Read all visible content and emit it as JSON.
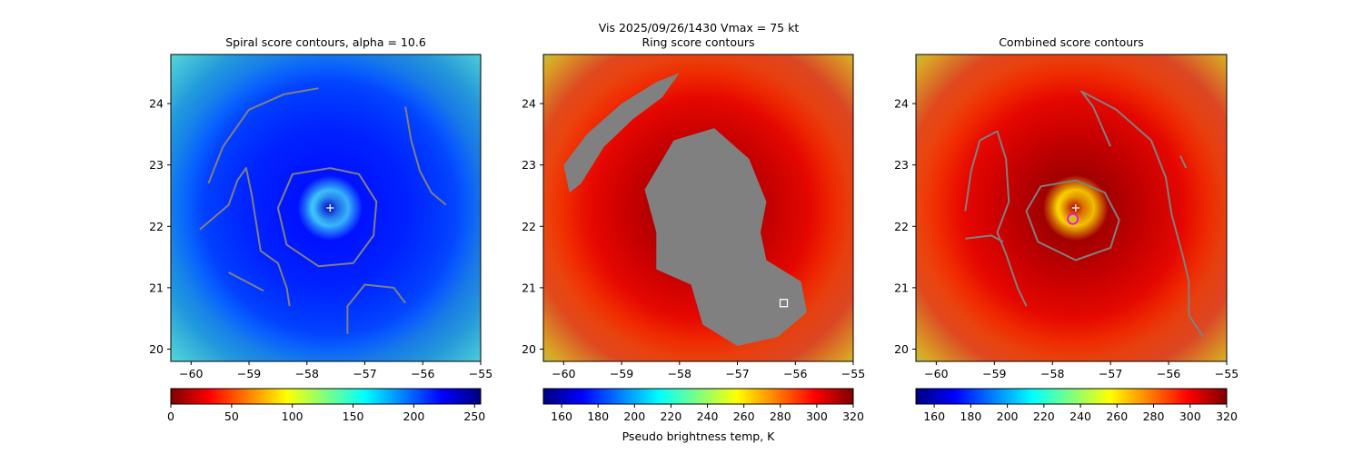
{
  "figure": {
    "suptitle_line1": "Vis  2025/09/26/1430    Vmax = 75 kt"
  },
  "colormap_stops": [
    "#7f0000",
    "#ff0000",
    "#ff8000",
    "#ffff00",
    "#7fff7f",
    "#00ffff",
    "#0080ff",
    "#0000ff",
    "#00007f"
  ],
  "colors": {
    "contour": "#808080",
    "center_marker": "#ffffff",
    "ring_fill": "#808080",
    "combined_marker_fill": "#c8c800",
    "combined_marker_edge": "#ff00ff"
  },
  "chart_data": [
    {
      "type": "heatmap",
      "title": "Spiral score contours, alpha = 10.6",
      "xlabel": "",
      "ylabel": "",
      "xlim": [
        -60.35,
        -55.0
      ],
      "ylim": [
        19.8,
        24.8
      ],
      "xticks": [
        -60,
        -59,
        -58,
        -57,
        -56,
        -55
      ],
      "yticks": [
        20,
        21,
        22,
        23,
        24
      ],
      "colorbar": {
        "min": 0,
        "max": 255,
        "ticks": [
          0,
          50,
          100,
          150,
          200,
          250
        ],
        "reversed": false,
        "label": ""
      },
      "storm_center": {
        "lon": -57.6,
        "lat": 22.3,
        "marker": "+"
      },
      "contours": [
        [
          [
            -59.7,
            22.7
          ],
          [
            -59.45,
            23.3
          ],
          [
            -59.0,
            23.9
          ],
          [
            -58.4,
            24.15
          ],
          [
            -57.8,
            24.25
          ]
        ],
        [
          [
            -59.85,
            21.95
          ],
          [
            -59.35,
            22.35
          ],
          [
            -59.2,
            22.75
          ],
          [
            -59.05,
            22.95
          ],
          [
            -58.95,
            22.5
          ],
          [
            -58.8,
            21.6
          ],
          [
            -58.5,
            21.4
          ],
          [
            -58.35,
            21.0
          ],
          [
            -58.3,
            20.7
          ]
        ],
        [
          [
            -57.6,
            22.95
          ],
          [
            -57.1,
            22.85
          ],
          [
            -56.8,
            22.4
          ],
          [
            -56.85,
            21.85
          ],
          [
            -57.2,
            21.4
          ],
          [
            -57.8,
            21.35
          ],
          [
            -58.35,
            21.7
          ],
          [
            -58.5,
            22.3
          ],
          [
            -58.25,
            22.85
          ],
          [
            -57.6,
            22.95
          ]
        ],
        [
          [
            -56.3,
            23.95
          ],
          [
            -56.2,
            23.4
          ],
          [
            -56.05,
            22.9
          ],
          [
            -55.85,
            22.55
          ],
          [
            -55.6,
            22.35
          ]
        ],
        [
          [
            -57.3,
            20.25
          ],
          [
            -57.3,
            20.7
          ],
          [
            -57.0,
            21.05
          ],
          [
            -56.5,
            21.0
          ],
          [
            -56.3,
            20.75
          ]
        ],
        [
          [
            -59.35,
            21.25
          ],
          [
            -59.05,
            21.1
          ],
          [
            -58.75,
            20.95
          ]
        ]
      ]
    },
    {
      "type": "heatmap",
      "title": "Ring score contours",
      "xlabel": "Pseudo brightness temp, K",
      "ylabel": "",
      "xlim": [
        -60.35,
        -55.0
      ],
      "ylim": [
        19.8,
        24.8
      ],
      "xticks": [
        -60,
        -59,
        -58,
        -57,
        -56,
        -55
      ],
      "yticks": [
        20,
        21,
        22,
        23,
        24
      ],
      "colorbar": {
        "min": 150,
        "max": 320,
        "ticks": [
          160,
          180,
          200,
          220,
          240,
          260,
          280,
          300,
          320
        ],
        "reversed": true,
        "label": "Pseudo brightness temp, K"
      },
      "filled_region": [
        [
          -60.0,
          23.0
        ],
        [
          -59.6,
          23.5
        ],
        [
          -59.0,
          24.0
        ],
        [
          -58.4,
          24.35
        ],
        [
          -58.0,
          24.5
        ],
        [
          -58.3,
          24.1
        ],
        [
          -58.8,
          23.75
        ],
        [
          -59.3,
          23.3
        ],
        [
          -59.7,
          22.7
        ],
        [
          -59.9,
          22.55
        ],
        [
          -60.0,
          23.0
        ]
      ],
      "filled_region_2": [
        [
          -58.4,
          21.9
        ],
        [
          -58.6,
          22.6
        ],
        [
          -58.1,
          23.4
        ],
        [
          -57.4,
          23.6
        ],
        [
          -56.8,
          23.1
        ],
        [
          -56.5,
          22.4
        ],
        [
          -56.6,
          21.9
        ],
        [
          -56.5,
          21.45
        ],
        [
          -55.9,
          21.1
        ],
        [
          -55.8,
          20.6
        ],
        [
          -56.3,
          20.2
        ],
        [
          -57.0,
          20.05
        ],
        [
          -57.6,
          20.4
        ],
        [
          -57.8,
          21.05
        ],
        [
          -58.4,
          21.3
        ],
        [
          -58.4,
          21.9
        ]
      ],
      "square_marker": {
        "lon": -56.2,
        "lat": 20.75
      }
    },
    {
      "type": "heatmap",
      "title": "Combined score contours",
      "xlabel": "",
      "ylabel": "",
      "xlim": [
        -60.35,
        -55.0
      ],
      "ylim": [
        19.8,
        24.8
      ],
      "xticks": [
        -60,
        -59,
        -58,
        -57,
        -56,
        -55
      ],
      "yticks": [
        20,
        21,
        22,
        23,
        24
      ],
      "colorbar": {
        "min": 150,
        "max": 320,
        "ticks": [
          160,
          180,
          200,
          220,
          240,
          260,
          280,
          300,
          320
        ],
        "reversed": true,
        "label": ""
      },
      "storm_center": {
        "lon": -57.6,
        "lat": 22.3,
        "marker": "+"
      },
      "best_estimate": {
        "lon": -57.65,
        "lat": 22.12
      },
      "contours": [
        [
          [
            -59.5,
            22.25
          ],
          [
            -59.4,
            22.9
          ],
          [
            -59.25,
            23.4
          ],
          [
            -58.95,
            23.55
          ],
          [
            -58.8,
            23.1
          ],
          [
            -58.75,
            22.4
          ],
          [
            -58.95,
            21.9
          ],
          [
            -58.8,
            21.55
          ],
          [
            -58.6,
            21.0
          ],
          [
            -58.45,
            20.7
          ]
        ],
        [
          [
            -59.5,
            21.8
          ],
          [
            -59.05,
            21.85
          ],
          [
            -58.85,
            21.75
          ]
        ],
        [
          [
            -57.0,
            23.3
          ],
          [
            -57.3,
            23.95
          ],
          [
            -57.5,
            24.2
          ],
          [
            -56.9,
            23.9
          ],
          [
            -56.3,
            23.4
          ],
          [
            -56.05,
            22.8
          ],
          [
            -55.95,
            22.2
          ],
          [
            -55.75,
            21.5
          ],
          [
            -55.65,
            21.1
          ],
          [
            -55.65,
            20.55
          ],
          [
            -55.4,
            20.2
          ]
        ],
        [
          [
            -57.6,
            22.75
          ],
          [
            -57.1,
            22.55
          ],
          [
            -56.85,
            22.1
          ],
          [
            -57.0,
            21.65
          ],
          [
            -57.6,
            21.45
          ],
          [
            -58.25,
            21.75
          ],
          [
            -58.45,
            22.25
          ],
          [
            -58.2,
            22.65
          ],
          [
            -57.6,
            22.75
          ]
        ],
        [
          [
            -55.8,
            23.15
          ],
          [
            -55.7,
            22.95
          ]
        ]
      ]
    }
  ]
}
